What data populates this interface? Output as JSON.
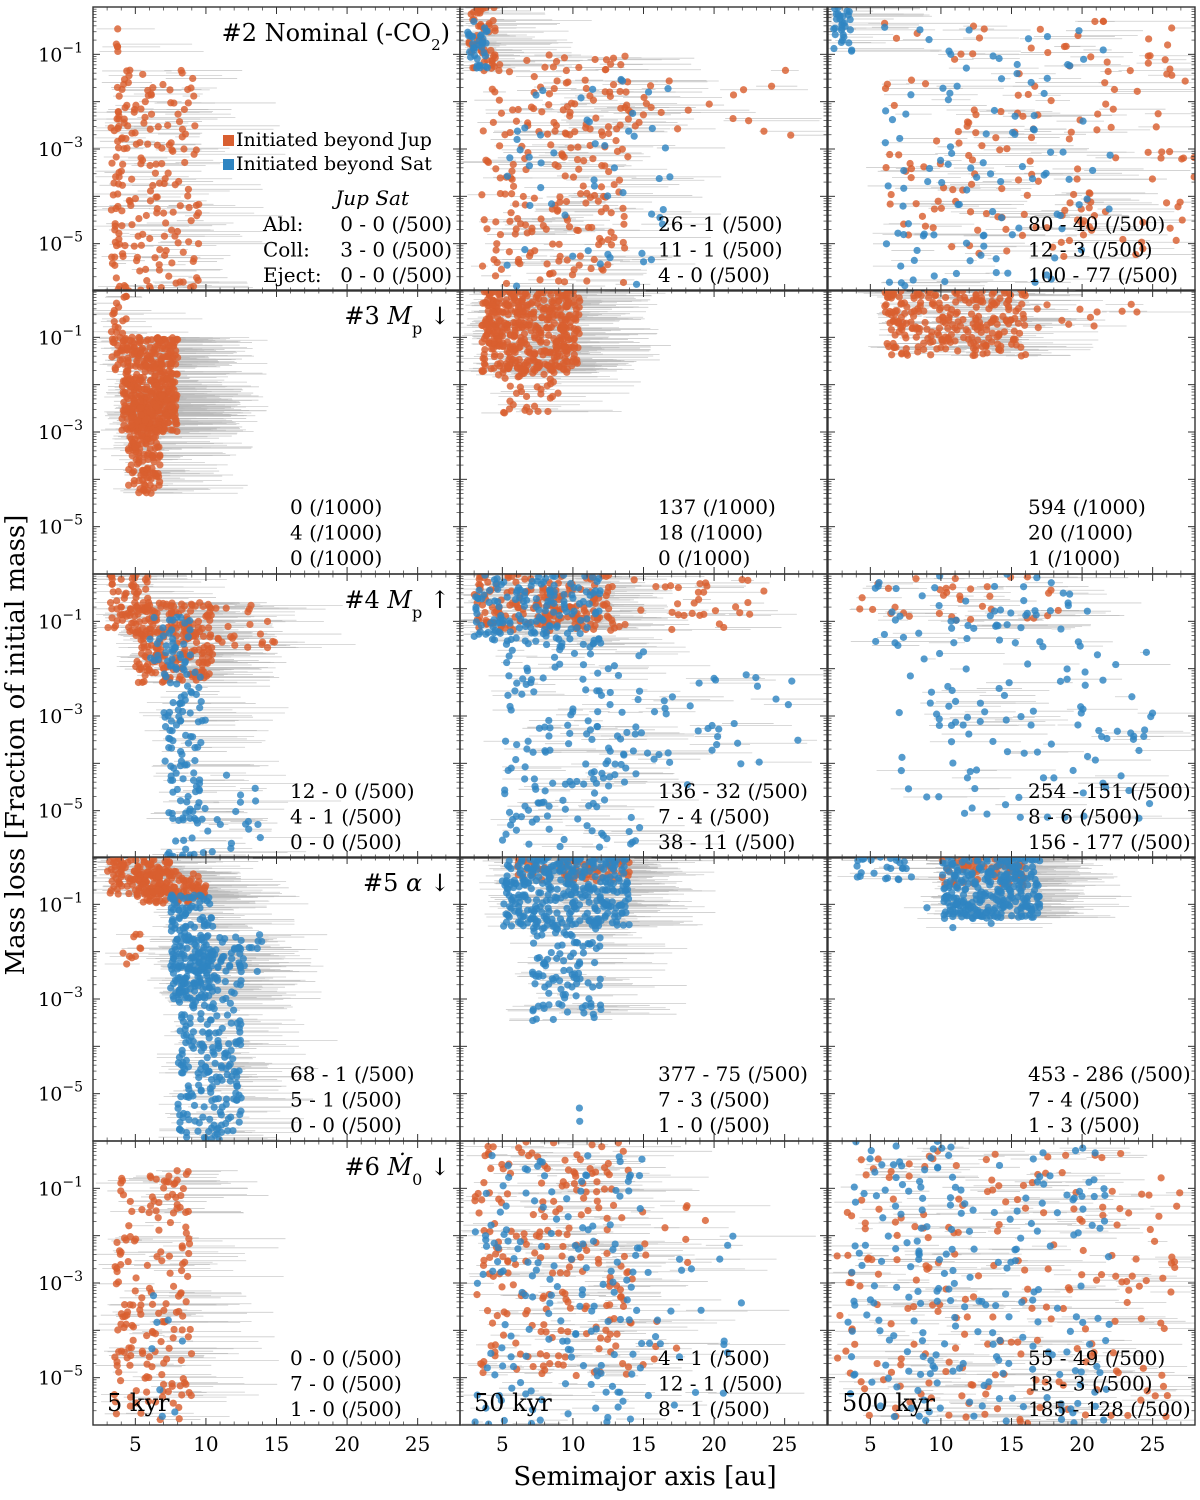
{
  "chart_data": {
    "type": "scatter",
    "title": "",
    "xlabel": "Semimajor axis [au]",
    "ylabel": "Mass loss [Fraction of initial mass]",
    "xlim": [
      2,
      28
    ],
    "ylim": [
      1e-06,
      1
    ],
    "yscale": "log",
    "x_ticks": [
      "5",
      "10",
      "15",
      "20",
      "25"
    ],
    "y_ticks": [
      "10^-1",
      "10^-3",
      "10^-5"
    ],
    "colors": {
      "jup": "#d95f30",
      "sat": "#2f85c2",
      "error_bar": "#b8b8b8"
    },
    "legend": {
      "placement": "row 1, left column, middle-right",
      "entries": [
        "Initiated beyond Jup",
        "Initiated beyond Sat"
      ],
      "header": "Jup  Sat",
      "row_labels": [
        "Abl:",
        "Coll:",
        "Eject:"
      ]
    },
    "columns": [
      {
        "label": "",
        "time": "5 kyr"
      },
      {
        "label": "",
        "time": "50 kyr"
      },
      {
        "label": "",
        "time": "500 kyr"
      }
    ],
    "rows": [
      {
        "title_html": "#2 Nominal (-CO<tspan baseline-shift=\"sub\" font-size=\"15\">2</tspan>)",
        "title_text": "#2 Nominal (-CO2)",
        "panels": [
          {
            "stats": [
              "0 - 0 (/500)",
              "3 - 0 (/500)",
              "0 - 0 (/500)"
            ]
          },
          {
            "stats": [
              "26 - 1 (/500)",
              "11 - 1 (/500)",
              "4 - 0 (/500)"
            ]
          },
          {
            "stats": [
              "80 - 40 (/500)",
              "12 - 3 (/500)",
              "100 - 77 (/500)"
            ]
          }
        ]
      },
      {
        "title_html": "#3 <tspan font-style=\"italic\">M</tspan><tspan baseline-shift=\"sub\" font-size=\"16\">p</tspan> ↓",
        "title_text": "#3 Mp ↓",
        "panels": [
          {
            "stats": [
              "0 (/1000)",
              "4 (/1000)",
              "0 (/1000)"
            ]
          },
          {
            "stats": [
              "137 (/1000)",
              "18 (/1000)",
              "0 (/1000)"
            ]
          },
          {
            "stats": [
              "594 (/1000)",
              "20 (/1000)",
              "1 (/1000)"
            ]
          }
        ]
      },
      {
        "title_html": "#4 <tspan font-style=\"italic\">M</tspan><tspan baseline-shift=\"sub\" font-size=\"16\">p</tspan> ↑",
        "title_text": "#4 Mp ↑",
        "panels": [
          {
            "stats": [
              "12 - 0 (/500)",
              "4 - 1 (/500)",
              "0 - 0 (/500)"
            ]
          },
          {
            "stats": [
              "136 - 32 (/500)",
              "7 - 4 (/500)",
              "38 - 11 (/500)"
            ]
          },
          {
            "stats": [
              "254 - 151 (/500)",
              "8 - 6 (/500)",
              "156 - 177 (/500)"
            ]
          }
        ]
      },
      {
        "title_html": "#5 <tspan font-style=\"italic\">α</tspan> ↓",
        "title_text": "#5 α ↓",
        "panels": [
          {
            "stats": [
              "68 - 1 (/500)",
              "5 - 1 (/500)",
              "0 - 0 (/500)"
            ]
          },
          {
            "stats": [
              "377 - 75 (/500)",
              "7 - 3 (/500)",
              "1 - 0 (/500)"
            ]
          },
          {
            "stats": [
              "453 - 286 (/500)",
              "7 - 4 (/500)",
              "1 - 3 (/500)"
            ]
          }
        ]
      },
      {
        "title_html": "#6 <tspan font-style=\"italic\">Ṁ</tspan><tspan baseline-shift=\"sub\" font-size=\"16\">0</tspan> ↓",
        "title_text": "#6 Ṁ0 ↓",
        "panels": [
          {
            "stats": [
              "0 - 0 (/500)",
              "7 - 0 (/500)",
              "1 - 0 (/500)"
            ]
          },
          {
            "stats": [
              "4 - 1 (/500)",
              "12 - 1 (/500)",
              "8 - 1 (/500)"
            ]
          },
          {
            "stats": [
              "55 - 49 (/500)",
              "13 - 3 (/500)",
              "185 - 128 (/500)"
            ]
          }
        ]
      }
    ],
    "clusters": {
      "r0c0": [
        {
          "c": "jup",
          "n": 42,
          "x": [
            3.2,
            4.2
          ],
          "y": [
            -6,
            -0.3
          ]
        },
        {
          "c": "jup",
          "n": 160,
          "x": [
            3.5,
            9.5
          ],
          "y": [
            -6,
            -1.3
          ]
        }
      ],
      "r0c1": [
        {
          "c": "jup",
          "n": 50,
          "x": [
            2.6,
            4.5
          ],
          "y": [
            -1.3,
            0
          ]
        },
        {
          "c": "jup",
          "n": 230,
          "x": [
            3.5,
            14
          ],
          "y": [
            -5.9,
            -1
          ]
        },
        {
          "c": "jup",
          "n": 25,
          "x": [
            12,
            26
          ],
          "y": [
            -2.8,
            -1.2
          ]
        },
        {
          "c": "sat",
          "n": 35,
          "x": [
            2.5,
            4
          ],
          "y": [
            -1.3,
            -0.2
          ]
        },
        {
          "c": "sat",
          "n": 55,
          "x": [
            5,
            17
          ],
          "y": [
            -6,
            -1.5
          ]
        }
      ],
      "r0c2": [
        {
          "c": "jup",
          "n": 170,
          "x": [
            6,
            28
          ],
          "y": [
            -5.3,
            -0.3
          ]
        },
        {
          "c": "sat",
          "n": 30,
          "x": [
            2.4,
            3.8
          ],
          "y": [
            -1,
            0
          ]
        },
        {
          "c": "sat",
          "n": 110,
          "x": [
            6,
            22
          ],
          "y": [
            -6,
            -0.4
          ]
        }
      ],
      "r1c0": [
        {
          "c": "jup",
          "n": 40,
          "x": [
            3.3,
            4.5
          ],
          "y": [
            -2,
            0
          ]
        },
        {
          "c": "jup",
          "n": 420,
          "x": [
            4,
            8
          ],
          "y": [
            -3,
            -1
          ]
        },
        {
          "c": "jup",
          "n": 160,
          "x": [
            4.5,
            6.8
          ],
          "y": [
            -4.3,
            -2.4
          ]
        }
      ],
      "r1c1": [
        {
          "c": "jup",
          "n": 450,
          "x": [
            3.5,
            10.5
          ],
          "y": [
            -1.8,
            0
          ]
        },
        {
          "c": "jup",
          "n": 45,
          "x": [
            5,
            9
          ],
          "y": [
            -2.6,
            -1.5
          ]
        }
      ],
      "r1c2": [
        {
          "c": "jup",
          "n": 260,
          "x": [
            6,
            16
          ],
          "y": [
            -1.4,
            0
          ]
        },
        {
          "c": "jup",
          "n": 12,
          "x": [
            16,
            24
          ],
          "y": [
            -0.9,
            -0.3
          ]
        }
      ],
      "r2c0": [
        {
          "c": "jup",
          "n": 70,
          "x": [
            3,
            6
          ],
          "y": [
            -1.3,
            0
          ]
        },
        {
          "c": "jup",
          "n": 220,
          "x": [
            5,
            10.5
          ],
          "y": [
            -2.3,
            -0.6
          ]
        },
        {
          "c": "jup",
          "n": 25,
          "x": [
            10,
            15
          ],
          "y": [
            -1.6,
            -0.6
          ]
        },
        {
          "c": "sat",
          "n": 40,
          "x": [
            6,
            9
          ],
          "y": [
            -2,
            -0.8
          ]
        },
        {
          "c": "sat",
          "n": 110,
          "x": [
            7,
            10
          ],
          "y": [
            -6,
            -2
          ]
        },
        {
          "c": "sat",
          "n": 20,
          "x": [
            9.5,
            14
          ],
          "y": [
            -6,
            -4.2
          ]
        }
      ],
      "r2c1": [
        {
          "c": "jup",
          "n": 190,
          "x": [
            3,
            13
          ],
          "y": [
            -1.2,
            0
          ]
        },
        {
          "c": "jup",
          "n": 35,
          "x": [
            12,
            24
          ],
          "y": [
            -1.2,
            -0.1
          ]
        },
        {
          "c": "sat",
          "n": 160,
          "x": [
            3,
            12
          ],
          "y": [
            -1.5,
            0
          ]
        },
        {
          "c": "sat",
          "n": 150,
          "x": [
            5,
            15
          ],
          "y": [
            -5.8,
            -1.5
          ]
        },
        {
          "c": "sat",
          "n": 40,
          "x": [
            11,
            26
          ],
          "y": [
            -4.5,
            -2
          ]
        }
      ],
      "r2c2": [
        {
          "c": "jup",
          "n": 35,
          "x": [
            4,
            20
          ],
          "y": [
            -1,
            0
          ]
        },
        {
          "c": "sat",
          "n": 55,
          "x": [
            5,
            21
          ],
          "y": [
            -1.6,
            0
          ]
        },
        {
          "c": "sat",
          "n": 95,
          "x": [
            7,
            25
          ],
          "y": [
            -5.2,
            -1.5
          ]
        }
      ]
    },
    "clusters2": {
      "r3c0": [
        {
          "c": "jup",
          "n": 110,
          "x": [
            3,
            7.5
          ],
          "y": [
            -0.8,
            0
          ]
        },
        {
          "c": "jup",
          "n": 130,
          "x": [
            5,
            10
          ],
          "y": [
            -1,
            -0.3
          ]
        },
        {
          "c": "jup",
          "n": 10,
          "x": [
            4,
            5.5
          ],
          "y": [
            -2.4,
            -1.6
          ]
        },
        {
          "c": "sat",
          "n": 180,
          "x": [
            7.5,
            10.5
          ],
          "y": [
            -3,
            -0.8
          ]
        },
        {
          "c": "sat",
          "n": 280,
          "x": [
            8,
            12.5
          ],
          "y": [
            -6,
            -1.7
          ]
        },
        {
          "c": "sat",
          "n": 15,
          "x": [
            12,
            14
          ],
          "y": [
            -2.5,
            -1.5
          ]
        }
      ],
      "r3c1": [
        {
          "c": "jup",
          "n": 80,
          "x": [
            6,
            14
          ],
          "y": [
            -0.5,
            0
          ]
        },
        {
          "c": "sat",
          "n": 330,
          "x": [
            5,
            14
          ],
          "y": [
            -1.5,
            0
          ]
        },
        {
          "c": "sat",
          "n": 120,
          "x": [
            7,
            12
          ],
          "y": [
            -3.5,
            -1.3
          ]
        },
        {
          "c": "sat",
          "n": 2,
          "x": [
            9.5,
            10.5
          ],
          "y": [
            -5.9,
            -4.6
          ]
        }
      ],
      "r3c2": [
        {
          "c": "jup",
          "n": 60,
          "x": [
            10,
            16
          ],
          "y": [
            -0.6,
            0
          ]
        },
        {
          "c": "sat",
          "n": 280,
          "x": [
            10,
            17
          ],
          "y": [
            -1.3,
            0
          ]
        },
        {
          "c": "sat",
          "n": 25,
          "x": [
            4,
            8
          ],
          "y": [
            -0.5,
            0
          ]
        },
        {
          "c": "sat",
          "n": 12,
          "x": [
            9,
            14
          ],
          "y": [
            -1.5,
            -1
          ]
        }
      ],
      "r4c0": [
        {
          "c": "jup",
          "n": 180,
          "x": [
            3.5,
            9
          ],
          "y": [
            -5.9,
            -0.6
          ]
        },
        {
          "c": "sat",
          "n": 8,
          "x": [
            6,
            9
          ],
          "y": [
            -5.9,
            -3
          ]
        }
      ],
      "r4c1": [
        {
          "c": "jup",
          "n": 210,
          "x": [
            3,
            14
          ],
          "y": [
            -5,
            0
          ]
        },
        {
          "c": "jup",
          "n": 20,
          "x": [
            11,
            20
          ],
          "y": [
            -5,
            -1.2
          ]
        },
        {
          "c": "sat",
          "n": 160,
          "x": [
            3,
            15
          ],
          "y": [
            -6,
            -0.3
          ]
        },
        {
          "c": "sat",
          "n": 25,
          "x": [
            12,
            22
          ],
          "y": [
            -5.6,
            -2
          ]
        }
      ],
      "r4c2": [
        {
          "c": "jup",
          "n": 220,
          "x": [
            2.5,
            27
          ],
          "y": [
            -6,
            -0.2
          ]
        },
        {
          "c": "sat",
          "n": 230,
          "x": [
            3,
            22
          ],
          "y": [
            -6,
            0
          ]
        }
      ]
    }
  }
}
